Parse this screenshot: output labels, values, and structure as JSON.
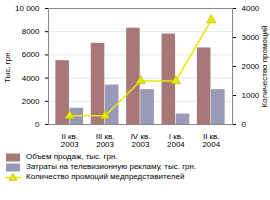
{
  "chart_data": {
    "type": "bar",
    "categories": [
      "II кв.\n2003",
      "III кв.\n2003",
      "IV кв.\n2003",
      "I кв.\n2004",
      "II кв.\n2004"
    ],
    "series": [
      {
        "name": "Объем продаж, тыс. грн.",
        "color": "#a87878",
        "values": [
          5500,
          7000,
          8300,
          7800,
          6600
        ]
      },
      {
        "name": "Затраты на телевизионную рекламу, тыс. грн.",
        "color": "#9898b8",
        "values": [
          1400,
          3400,
          3000,
          900,
          3000
        ]
      },
      {
        "name": "Количество промоций медпредставителей",
        "type": "line",
        "axis": "y2",
        "color": "#e8e800",
        "marker": "triangle",
        "values": [
          300,
          300,
          1500,
          1500,
          3600
        ]
      }
    ],
    "ylabel": "Тыс. грн.",
    "y2label": "Количество промоций",
    "ylim": [
      0,
      10000
    ],
    "yticks": [
      0,
      2000,
      4000,
      6000,
      8000,
      {
        "value": 10000,
        "label": "10 000"
      }
    ],
    "y2lim": [
      0,
      4000
    ],
    "y2ticks": [
      0,
      1000,
      2000,
      3000,
      4000
    ],
    "grid": true,
    "legend": "lower left"
  }
}
